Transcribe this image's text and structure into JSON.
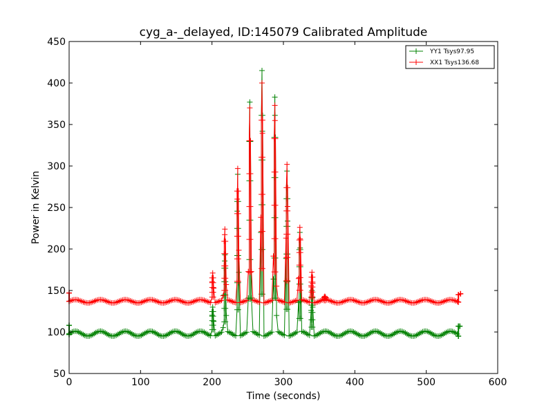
{
  "chart_data": {
    "type": "line",
    "title": "cyg_a-_delayed, ID:145079 Calibrated Amplitude",
    "xlabel": "Time (seconds)",
    "ylabel": "Power in Kelvin",
    "xlim": [
      0,
      600
    ],
    "ylim": [
      50,
      450
    ],
    "xticks": [
      0,
      100,
      200,
      300,
      400,
      500,
      600
    ],
    "yticks": [
      50,
      100,
      150,
      200,
      250,
      300,
      350,
      400,
      450
    ],
    "x_tick_labels": [
      "0",
      "100",
      "200",
      "300",
      "400",
      "500",
      "600"
    ],
    "y_tick_labels": [
      "50",
      "100",
      "150",
      "200",
      "250",
      "300",
      "350",
      "400",
      "450"
    ],
    "grid": false,
    "legend_position": "top-right",
    "series": [
      {
        "name": "YY1 Tsys97.95",
        "color": "#008000",
        "marker": "plus",
        "baseline": 98,
        "ripple": 3,
        "ripple_period": 35,
        "x_start": 0,
        "x_end": 545,
        "end_points": [
          [
            0,
            97
          ],
          [
            0,
            108
          ],
          [
            545,
            95
          ],
          [
            545,
            107
          ],
          [
            547,
            107
          ]
        ],
        "peaks": [
          {
            "x": 201,
            "value": 130
          },
          {
            "x": 218,
            "value": 193
          },
          {
            "x": 236,
            "value": 290
          },
          {
            "x": 253,
            "value": 377
          },
          {
            "x": 270,
            "value": 415
          },
          {
            "x": 288,
            "value": 383
          },
          {
            "x": 305,
            "value": 294
          },
          {
            "x": 323,
            "value": 220
          },
          {
            "x": 340,
            "value": 150
          }
        ]
      },
      {
        "name": "XX1 Tsys136.68",
        "color": "#ff0000",
        "marker": "plus",
        "baseline": 137,
        "ripple": 2,
        "ripple_period": 35,
        "x_start": 0,
        "x_end": 545,
        "end_points": [
          [
            0,
            137
          ],
          [
            0,
            147
          ],
          [
            545,
            136
          ],
          [
            545,
            145
          ],
          [
            548,
            146
          ]
        ],
        "peaks": [
          {
            "x": 201,
            "value": 171
          },
          {
            "x": 218,
            "value": 224
          },
          {
            "x": 236,
            "value": 297
          },
          {
            "x": 253,
            "value": 370
          },
          {
            "x": 270,
            "value": 400
          },
          {
            "x": 288,
            "value": 373
          },
          {
            "x": 305,
            "value": 302
          },
          {
            "x": 323,
            "value": 226
          },
          {
            "x": 340,
            "value": 172
          },
          {
            "x": 358,
            "value": 143
          }
        ]
      }
    ]
  }
}
